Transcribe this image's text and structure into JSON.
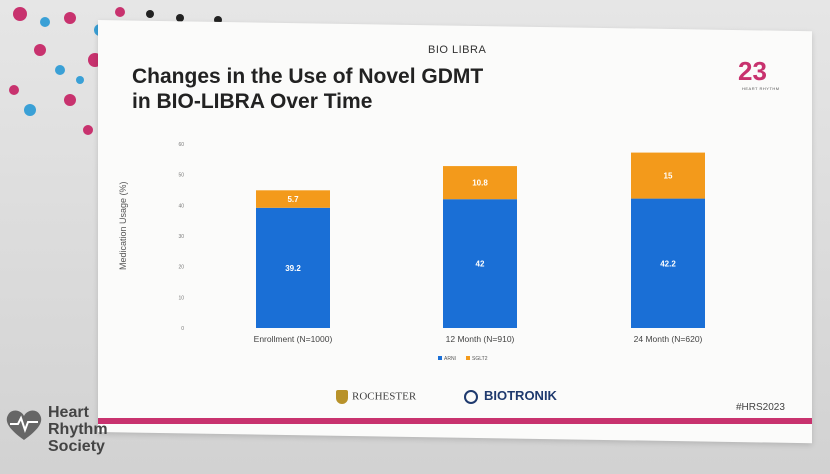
{
  "study_logo": "BIO LIBRA",
  "title_line1": "Changes in the Use of Novel GDMT",
  "title_line2": "in BIO-LIBRA Over Time",
  "hrs_year": "23",
  "hrs_sub": "HEART RHYTHM",
  "hashtag": "#HRS2023",
  "rochester": "ROCHESTER",
  "biotronik": "BIOTRONIK",
  "society": [
    "Heart",
    "Rhythm",
    "Society"
  ],
  "colors": {
    "arni": "#1a6fd6",
    "sglt2": "#f39a1b",
    "accent": "#c8326e"
  },
  "chart_data": {
    "type": "bar",
    "stacked": true,
    "categories": [
      "Enrollment (N=1000)",
      "12 Month (N=910)",
      "24 Month (N=620)"
    ],
    "series": [
      {
        "name": "ARNI",
        "values": [
          39.2,
          42,
          42.2
        ]
      },
      {
        "name": "SGLT2",
        "values": [
          5.7,
          10.8,
          15
        ]
      }
    ],
    "ylabel": "Medication Usage (%)",
    "ylim": [
      0,
      60
    ],
    "yticks": [
      0,
      10,
      20,
      30,
      40,
      50,
      60
    ],
    "legend": "bottom-center",
    "grid": false
  }
}
